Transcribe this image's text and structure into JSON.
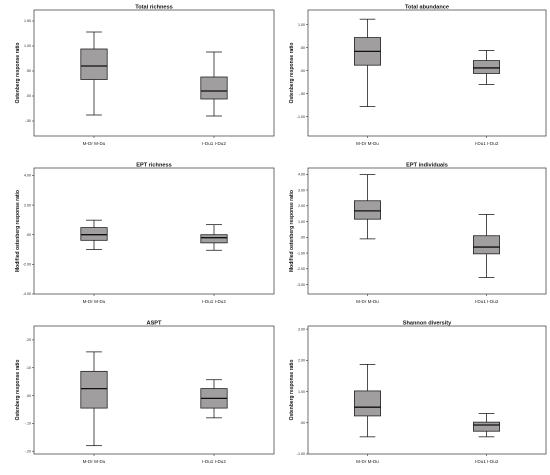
{
  "chart_data": [
    {
      "type": "box",
      "title": "Total richness",
      "ylabel": "Ostenberg response ratio",
      "categories": [
        "M-Dr M-Du",
        "I-Du1 I-Du2"
      ],
      "yticks": [
        "1.50",
        "1.00",
        ".50",
        ".00",
        "-.50"
      ],
      "ytick_values": [
        1.5,
        1.0,
        0.5,
        0.0,
        -0.5
      ],
      "ylim": [
        -0.8,
        1.72
      ],
      "boxes": [
        {
          "min": -0.38,
          "q1": 0.33,
          "median": 0.6,
          "q3": 0.94,
          "max": 1.28
        },
        {
          "min": -0.4,
          "q1": -0.06,
          "median": 0.1,
          "q3": 0.38,
          "max": 0.88
        }
      ]
    },
    {
      "type": "box",
      "title": "Total abundance",
      "ylabel": "Ostenberg response ratio",
      "categories": [
        "M-Dr M-Du",
        "I-Du1 I-Du2"
      ],
      "yticks": [
        "1.00",
        ".50",
        ".00",
        "-.50",
        "-1.00"
      ],
      "ytick_values": [
        1.0,
        0.5,
        0.0,
        -0.5,
        -1.0
      ],
      "ylim": [
        -1.42,
        1.32
      ],
      "boxes": [
        {
          "min": -0.78,
          "q1": 0.12,
          "median": 0.42,
          "q3": 0.72,
          "max": 1.12
        },
        {
          "min": -0.3,
          "q1": -0.06,
          "median": 0.06,
          "q3": 0.22,
          "max": 0.44
        }
      ]
    },
    {
      "type": "box",
      "title": "EPT richness",
      "ylabel": "Modified ostenberg response ratio",
      "categories": [
        "M-Dr M-Du",
        "I-Du1 I-Du2"
      ],
      "yticks": [
        "4.00",
        "2.00",
        ".00",
        "-2.00",
        "-4.00"
      ],
      "ytick_values": [
        4.0,
        2.0,
        0.0,
        -2.0,
        -4.0
      ],
      "ylim": [
        -4.0,
        4.5
      ],
      "boxes": [
        {
          "min": -1.0,
          "q1": -0.38,
          "median": 0.0,
          "q3": 0.48,
          "max": 0.98
        },
        {
          "min": -1.05,
          "q1": -0.55,
          "median": -0.2,
          "q3": 0.0,
          "max": 0.68
        }
      ]
    },
    {
      "type": "box",
      "title": "EPT individuals",
      "ylabel": "Modified ostenberg response ratio",
      "categories": [
        "M-Dr M-Du",
        "I-Du1 I-Du2"
      ],
      "yticks": [
        "4.00",
        "3.00",
        "2.00",
        "1.00",
        ".00",
        "-1.00",
        "-2.00",
        "-3.00"
      ],
      "ytick_values": [
        4.0,
        3.0,
        2.0,
        1.0,
        0.0,
        -1.0,
        -2.0,
        -3.0
      ],
      "ylim": [
        -3.6,
        4.4
      ],
      "boxes": [
        {
          "min": -0.1,
          "q1": 1.15,
          "median": 1.68,
          "q3": 2.32,
          "max": 3.98
        },
        {
          "min": -2.55,
          "q1": -1.05,
          "median": -0.62,
          "q3": 0.1,
          "max": 1.45
        }
      ]
    },
    {
      "type": "box",
      "title": "ASPT",
      "ylabel": "Ostenberg response ratio",
      "categories": [
        "M-Dr M-Du",
        "I-Du1 I-Du2"
      ],
      "yticks": [
        ".20",
        ".10",
        ".00",
        "-.10",
        "-.20"
      ],
      "ytick_values": [
        0.2,
        0.1,
        0.0,
        -0.1,
        -0.2
      ],
      "ylim": [
        -0.21,
        0.25
      ],
      "boxes": [
        {
          "min": -0.18,
          "q1": -0.045,
          "median": 0.025,
          "q3": 0.087,
          "max": 0.157
        },
        {
          "min": -0.08,
          "q1": -0.045,
          "median": -0.01,
          "q3": 0.025,
          "max": 0.057
        }
      ]
    },
    {
      "type": "box",
      "title": "Shannon diversity",
      "ylabel": "Ostenberg response ratio",
      "categories": [
        "M-Dr M-Du",
        "I-Du1 I-Du2"
      ],
      "yticks": [
        "3.00",
        "2.00",
        "1.00",
        ".00",
        "-1.00"
      ],
      "ytick_values": [
        3.0,
        2.0,
        1.0,
        0.0,
        -1.0
      ],
      "ylim": [
        -1.0,
        3.1
      ],
      "boxes": [
        {
          "min": -0.45,
          "q1": 0.22,
          "median": 0.5,
          "q3": 1.02,
          "max": 1.87
        },
        {
          "min": -0.45,
          "q1": -0.27,
          "median": -0.07,
          "q3": 0.02,
          "max": 0.3
        }
      ]
    }
  ]
}
